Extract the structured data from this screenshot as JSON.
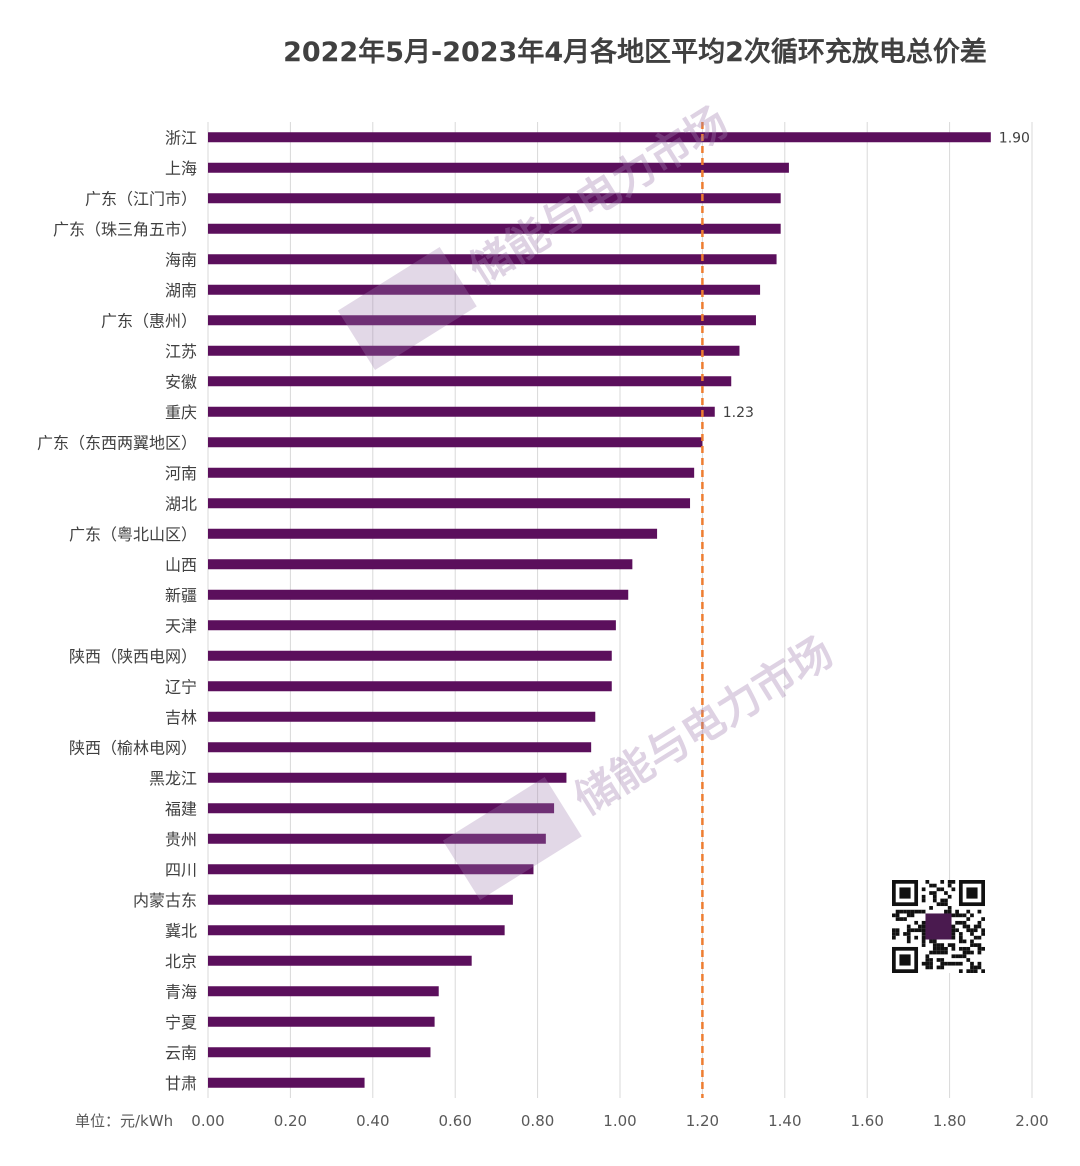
{
  "chart_data": {
    "type": "bar",
    "orientation": "horizontal",
    "title": "2022年5月-2023年4月各地区平均2次循环充放电总价差",
    "unit_label": "单位：元/kWh",
    "xlim": [
      0,
      2.0
    ],
    "x_ticks": [
      "0.00",
      "0.20",
      "0.40",
      "0.60",
      "0.80",
      "1.00",
      "1.20",
      "1.40",
      "1.60",
      "1.80",
      "2.00"
    ],
    "grid": true,
    "bar_color": "#5b0f5c",
    "reference_line": {
      "value": 1.2,
      "color": "#ed7d31",
      "style": "dashed"
    },
    "categories": [
      "浙江",
      "上海",
      "广东（江门市）",
      "广东（珠三角五市）",
      "海南",
      "湖南",
      "广东（惠州）",
      "江苏",
      "安徽",
      "重庆",
      "广东（东西两翼地区）",
      "河南",
      "湖北",
      "广东（粤北山区）",
      "山西",
      "新疆",
      "天津",
      "陕西（陕西电网）",
      "辽宁",
      "吉林",
      "陕西（榆林电网）",
      "黑龙江",
      "福建",
      "贵州",
      "四川",
      "内蒙古东",
      "冀北",
      "北京",
      "青海",
      "宁夏",
      "云南",
      "甘肃"
    ],
    "values": [
      1.9,
      1.41,
      1.39,
      1.39,
      1.38,
      1.34,
      1.33,
      1.29,
      1.27,
      1.23,
      1.2,
      1.18,
      1.17,
      1.09,
      1.03,
      1.02,
      0.99,
      0.98,
      0.98,
      0.94,
      0.93,
      0.87,
      0.84,
      0.82,
      0.79,
      0.74,
      0.72,
      0.64,
      0.56,
      0.55,
      0.54,
      0.38
    ],
    "data_labels": [
      {
        "index": 0,
        "text": "1.90"
      },
      {
        "index": 9,
        "text": "1.23"
      }
    ]
  },
  "watermark": {
    "text": "储能与电力市场"
  },
  "qr_code": {
    "icon": "qr-code-icon"
  }
}
